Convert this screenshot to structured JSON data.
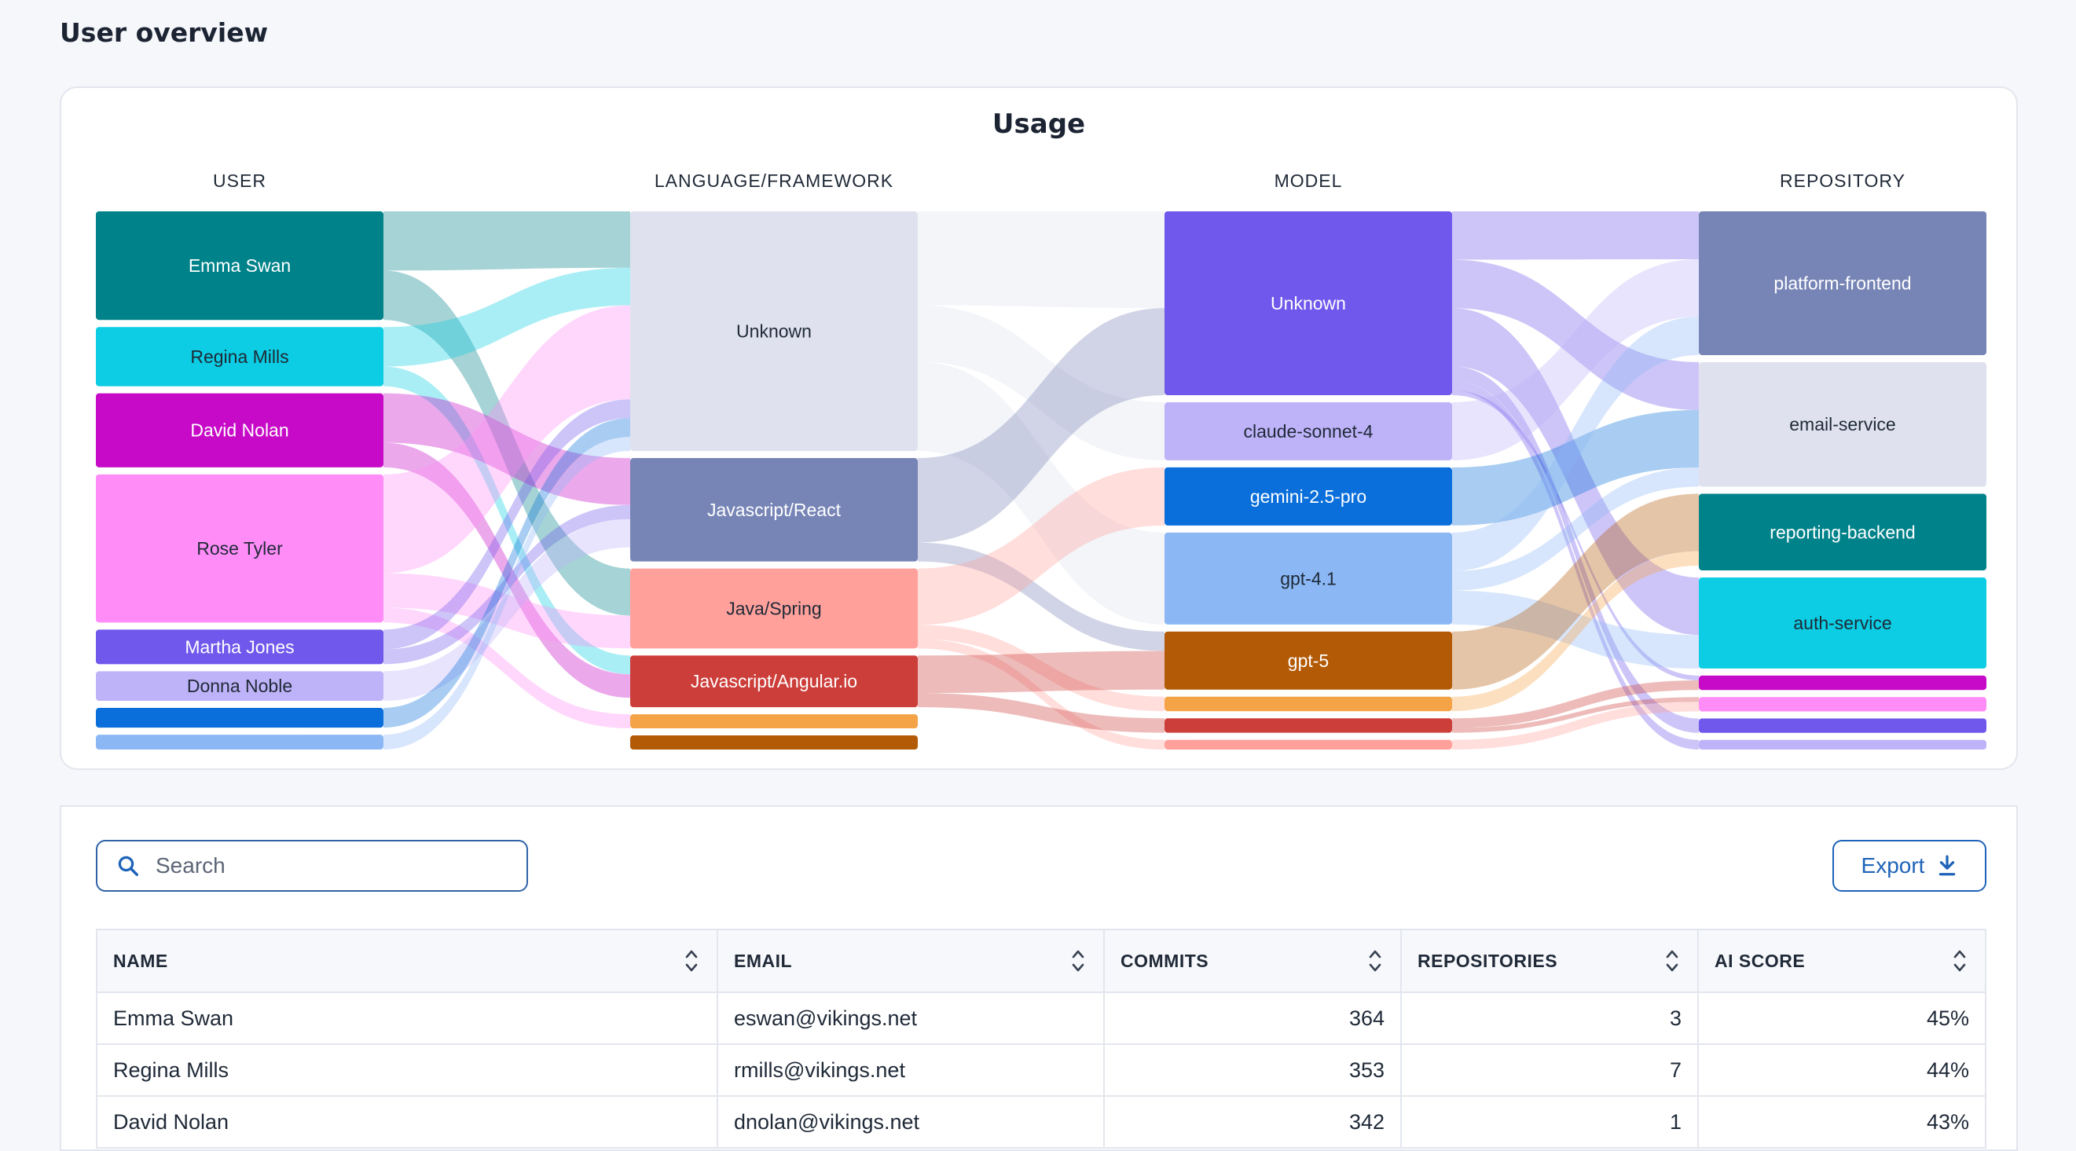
{
  "page": {
    "title": "User overview"
  },
  "chart_data": {
    "type": "sankey",
    "title": "Usage",
    "columns": [
      "USER",
      "LANGUAGE/FRAMEWORK",
      "MODEL",
      "REPOSITORY"
    ],
    "colors": {
      "user": [
        "#00828a",
        "#0ccde3",
        "#c70ac7",
        "#ff8cf7",
        "#7158ec",
        "#beb3f8",
        "#0a6fdb",
        "#8bb8f5"
      ],
      "language": [
        "#dfe2ee",
        "#7785b6",
        "#ffa09b",
        "#cc3e3a",
        "#f5a347",
        "#b35a06"
      ],
      "model": [
        "#7158ec",
        "#beb3f8",
        "#0a6fdb",
        "#8bb8f5",
        "#b35a06",
        "#f5a347",
        "#cc3e3a",
        "#ffa09b"
      ],
      "repository": [
        "#7785b6",
        "#dfe2ee",
        "#00828a",
        "#0ccde3",
        "#c70ac7",
        "#ff8cf7",
        "#7158ec",
        "#beb3f8"
      ]
    },
    "nodes": {
      "user": [
        {
          "label": "Emma Swan",
          "value": 22
        },
        {
          "label": "Regina Mills",
          "value": 12
        },
        {
          "label": "David Nolan",
          "value": 15
        },
        {
          "label": "Rose Tyler",
          "value": 30
        },
        {
          "label": "Martha Jones",
          "value": 7
        },
        {
          "label": "Donna Noble",
          "value": 6
        },
        {
          "label": "",
          "value": 4
        },
        {
          "label": "",
          "value": 3
        }
      ],
      "language": [
        {
          "label": "Unknown",
          "value": 51
        },
        {
          "label": "Javascript/React",
          "value": 22
        },
        {
          "label": "Java/Spring",
          "value": 17
        },
        {
          "label": "Javascript/Angular.io",
          "value": 11
        },
        {
          "label": "",
          "value": 3
        },
        {
          "label": "",
          "value": 3
        }
      ],
      "model": [
        {
          "label": "Unknown",
          "value": 38
        },
        {
          "label": "claude-sonnet-4",
          "value": 12
        },
        {
          "label": "gemini-2.5-pro",
          "value": 12
        },
        {
          "label": "gpt-4.1",
          "value": 19
        },
        {
          "label": "gpt-5",
          "value": 12
        },
        {
          "label": "",
          "value": 3
        },
        {
          "label": "",
          "value": 3
        },
        {
          "label": "",
          "value": 2
        }
      ],
      "repository": [
        {
          "label": "platform-frontend",
          "value": 30
        },
        {
          "label": "email-service",
          "value": 26
        },
        {
          "label": "reporting-backend",
          "value": 16
        },
        {
          "label": "auth-service",
          "value": 19
        },
        {
          "label": "",
          "value": 3
        },
        {
          "label": "",
          "value": 3
        },
        {
          "label": "",
          "value": 3
        },
        {
          "label": "",
          "value": 2
        }
      ]
    },
    "links": [
      {
        "stage": 0,
        "source": 0,
        "target": 0,
        "value": 12
      },
      {
        "stage": 0,
        "source": 0,
        "target": 2,
        "value": 10
      },
      {
        "stage": 0,
        "source": 1,
        "target": 0,
        "value": 8
      },
      {
        "stage": 0,
        "source": 1,
        "target": 3,
        "value": 4
      },
      {
        "stage": 0,
        "source": 2,
        "target": 1,
        "value": 10
      },
      {
        "stage": 0,
        "source": 2,
        "target": 3,
        "value": 5
      },
      {
        "stage": 0,
        "source": 3,
        "target": 0,
        "value": 20
      },
      {
        "stage": 0,
        "source": 3,
        "target": 2,
        "value": 7
      },
      {
        "stage": 0,
        "source": 3,
        "target": 4,
        "value": 3
      },
      {
        "stage": 0,
        "source": 4,
        "target": 0,
        "value": 4
      },
      {
        "stage": 0,
        "source": 4,
        "target": 1,
        "value": 3
      },
      {
        "stage": 0,
        "source": 5,
        "target": 1,
        "value": 6
      },
      {
        "stage": 0,
        "source": 6,
        "target": 0,
        "value": 4
      },
      {
        "stage": 0,
        "source": 7,
        "target": 0,
        "value": 3
      },
      {
        "stage": 1,
        "source": 0,
        "target": 0,
        "value": 20
      },
      {
        "stage": 1,
        "source": 0,
        "target": 1,
        "value": 12
      },
      {
        "stage": 1,
        "source": 0,
        "target": 3,
        "value": 19
      },
      {
        "stage": 1,
        "source": 1,
        "target": 0,
        "value": 18
      },
      {
        "stage": 1,
        "source": 1,
        "target": 4,
        "value": 4
      },
      {
        "stage": 1,
        "source": 2,
        "target": 2,
        "value": 12
      },
      {
        "stage": 1,
        "source": 2,
        "target": 5,
        "value": 3
      },
      {
        "stage": 1,
        "source": 2,
        "target": 7,
        "value": 2
      },
      {
        "stage": 1,
        "source": 3,
        "target": 4,
        "value": 8
      },
      {
        "stage": 1,
        "source": 3,
        "target": 6,
        "value": 3
      },
      {
        "stage": 1,
        "source": 4,
        "target": 4,
        "value": 0
      },
      {
        "stage": 1,
        "source": 4,
        "target": 0,
        "value": 0
      },
      {
        "stage": 1,
        "source": 4,
        "target": 6,
        "value": 0
      },
      {
        "stage": 2,
        "source": 0,
        "target": 0,
        "value": 10
      },
      {
        "stage": 2,
        "source": 0,
        "target": 1,
        "value": 10
      },
      {
        "stage": 2,
        "source": 0,
        "target": 3,
        "value": 12
      },
      {
        "stage": 2,
        "source": 0,
        "target": 6,
        "value": 3
      },
      {
        "stage": 2,
        "source": 0,
        "target": 7,
        "value": 2
      },
      {
        "stage": 2,
        "source": 0,
        "target": 4,
        "value": 1
      },
      {
        "stage": 2,
        "source": 1,
        "target": 0,
        "value": 12
      },
      {
        "stage": 2,
        "source": 2,
        "target": 1,
        "value": 12
      },
      {
        "stage": 2,
        "source": 3,
        "target": 0,
        "value": 8
      },
      {
        "stage": 2,
        "source": 3,
        "target": 1,
        "value": 4
      },
      {
        "stage": 2,
        "source": 3,
        "target": 3,
        "value": 7
      },
      {
        "stage": 2,
        "source": 4,
        "target": 2,
        "value": 12
      },
      {
        "stage": 2,
        "source": 5,
        "target": 2,
        "value": 3
      },
      {
        "stage": 2,
        "source": 6,
        "target": 4,
        "value": 2
      },
      {
        "stage": 2,
        "source": 6,
        "target": 5,
        "value": 1
      },
      {
        "stage": 2,
        "source": 7,
        "target": 5,
        "value": 2
      }
    ]
  },
  "table": {
    "search_placeholder": "Search",
    "export_label": "Export",
    "columns": [
      "NAME",
      "EMAIL",
      "COMMITS",
      "REPOSITORIES",
      "AI SCORE"
    ],
    "rows": [
      {
        "name": "Emma Swan",
        "email": "eswan@vikings.net",
        "commits": "364",
        "repositories": "3",
        "ai_score": "45%"
      },
      {
        "name": "Regina Mills",
        "email": "rmills@vikings.net",
        "commits": "353",
        "repositories": "7",
        "ai_score": "44%"
      },
      {
        "name": "David Nolan",
        "email": "dnolan@vikings.net",
        "commits": "342",
        "repositories": "1",
        "ai_score": "43%"
      }
    ]
  }
}
